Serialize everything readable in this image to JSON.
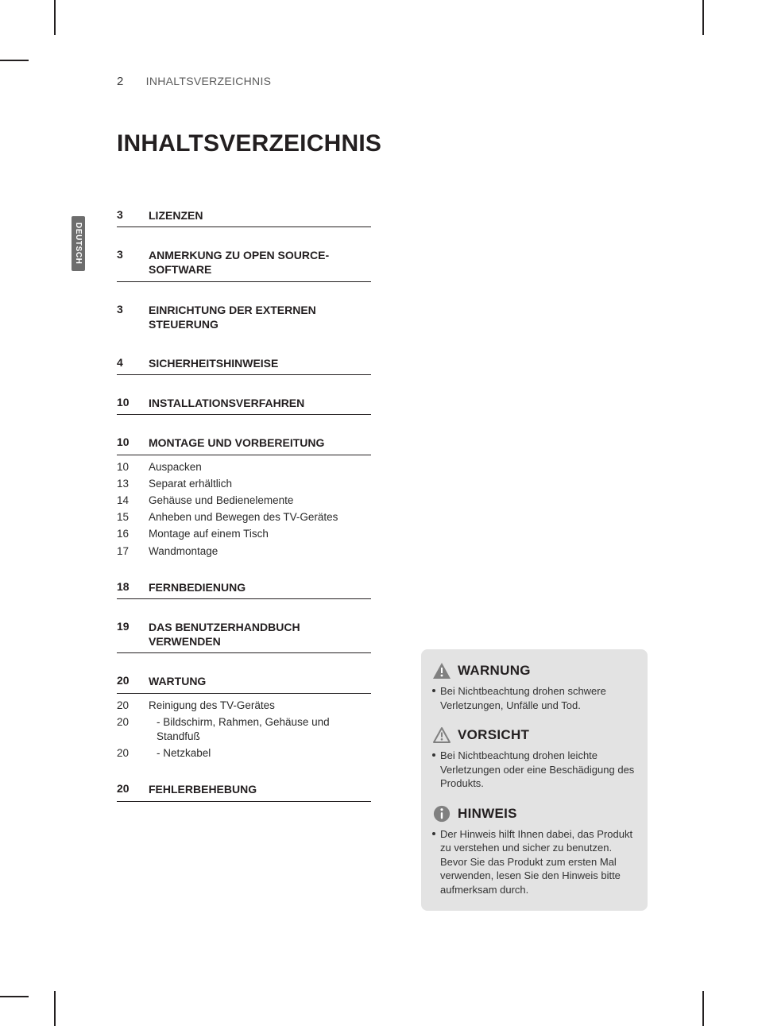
{
  "page_number": "2",
  "running_title": "INHALTSVERZEICHNIS",
  "language_tab": "DEUTSCH",
  "main_title": "INHALTSVERZEICHNIS",
  "colors": {
    "text": "#231f20",
    "muted_text": "#5a5a5a",
    "tab_bg": "#6d6d6d",
    "tab_text": "#ffffff",
    "box_bg": "#e3e3e3",
    "rule": "#231f20",
    "icon_warn_fill": "#808080",
    "icon_caution_stroke": "#808080",
    "icon_note_fill": "#808080"
  },
  "toc": [
    {
      "page": "3",
      "title": "LIZENZEN",
      "subs": []
    },
    {
      "page": "3",
      "title": "ANMERKUNG ZU OPEN SOURCE-SOFTWARE",
      "subs": []
    },
    {
      "page": "3",
      "title": "EINRICHTUNG DER EXTERNEN STEUERUNG",
      "subs": [],
      "no_rule": true
    },
    {
      "page": "4",
      "title": "SICHERHEITSHINWEISE",
      "subs": []
    },
    {
      "page": "10",
      "title": "INSTALLATIONSVERFAHREN",
      "subs": []
    },
    {
      "page": "10",
      "title": "MONTAGE UND VORBEREITUNG",
      "subs": [
        {
          "page": "10",
          "title": "Auspacken"
        },
        {
          "page": "13",
          "title": "Separat erhältlich"
        },
        {
          "page": "14",
          "title": "Gehäuse und Bedienelemente"
        },
        {
          "page": "15",
          "title": "Anheben und Bewegen des TV-Gerätes"
        },
        {
          "page": "16",
          "title": "Montage auf einem Tisch"
        },
        {
          "page": "17",
          "title": "Wandmontage"
        }
      ]
    },
    {
      "page": "18",
      "title": "FERNBEDIENUNG",
      "subs": []
    },
    {
      "page": "19",
      "title": "DAS BENUTZERHANDBUCH VERWENDEN",
      "subs": []
    },
    {
      "page": "20",
      "title": "WARTUNG",
      "subs": [
        {
          "page": "20",
          "title": "Reinigung des TV-Gerätes"
        },
        {
          "page": "20",
          "title": "-  Bildschirm, Rahmen, Gehäuse und Standfuß",
          "indented": true
        },
        {
          "page": "20",
          "title": "-  Netzkabel",
          "indented": true
        }
      ]
    },
    {
      "page": "20",
      "title": "FEHLERBEHEBUNG",
      "subs": []
    }
  ],
  "notices": {
    "warnung": {
      "label": "WARNUNG",
      "text": "Bei Nichtbeachtung drohen schwere Verletzungen, Unfälle und Tod."
    },
    "vorsicht": {
      "label": "VORSICHT",
      "text": "Bei Nichtbeachtung drohen leichte Verletzungen oder eine Beschädigung des Produkts."
    },
    "hinweis": {
      "label": "HINWEIS",
      "text": "Der Hinweis hilft Ihnen dabei, das Produkt zu verstehen und sicher zu benutzen. Bevor Sie das Produkt zum ersten Mal verwenden, lesen Sie den Hinweis bitte aufmerksam durch."
    }
  }
}
